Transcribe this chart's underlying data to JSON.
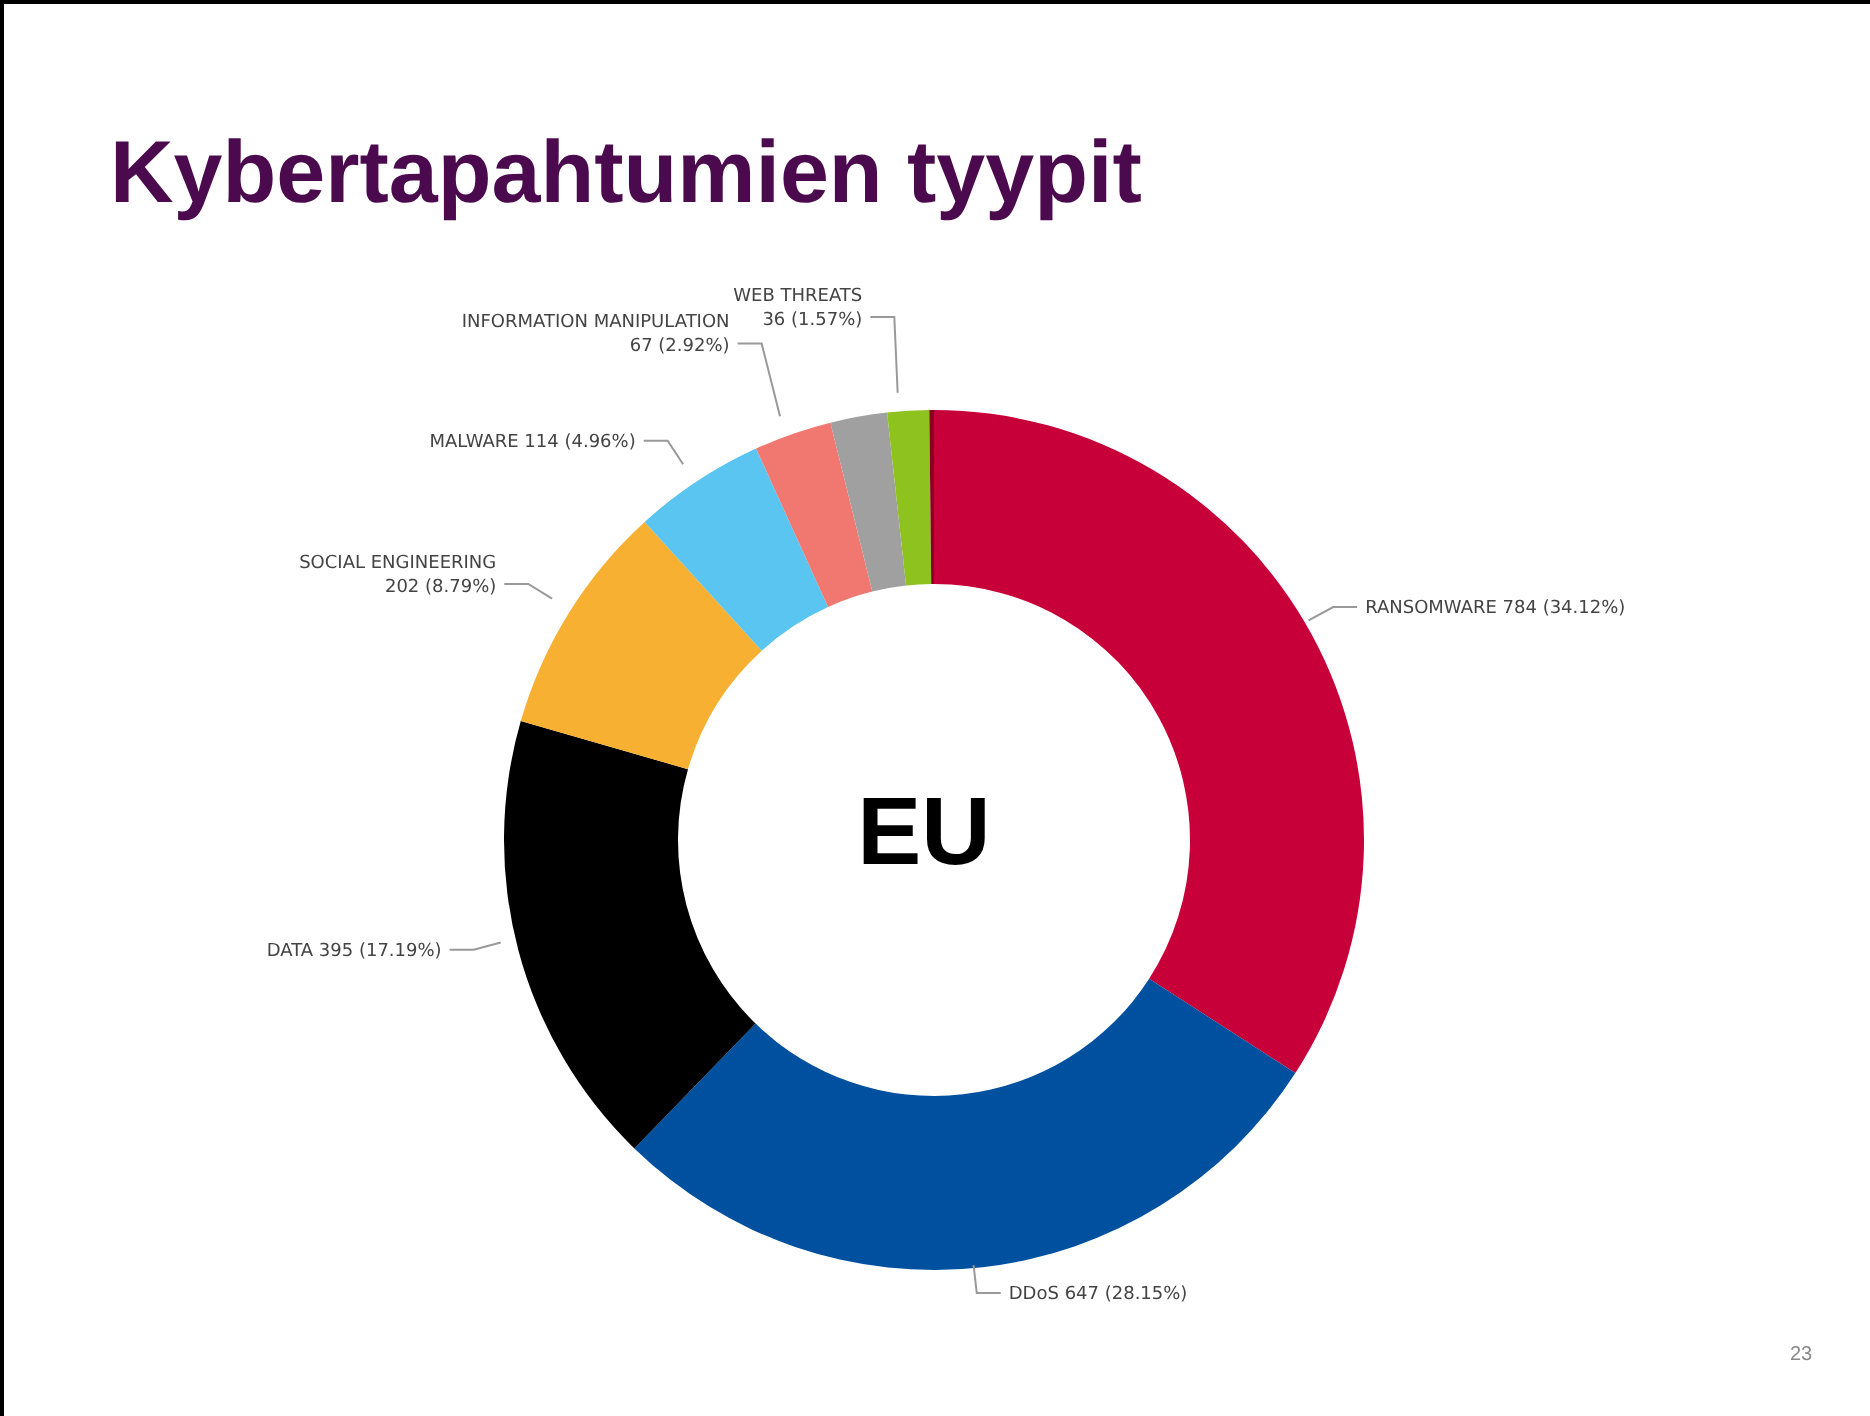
{
  "chart_data": {
    "type": "donut",
    "title": "Kybertapahtumien tyypit",
    "categories": [
      "RANSOMWARE",
      "DDoS",
      "DATA",
      "SOCIAL ENGINEERING",
      "MALWARE",
      "INFORMATION MANIPULATION",
      null,
      "WEB THREATS",
      null
    ],
    "values": [
      784,
      647,
      395,
      202,
      114,
      67,
      49,
      36,
      4
    ],
    "value_labels": [
      "784 (34.12%)",
      "647 (28.15%)",
      "395 (17.19%)",
      "202 (8.79%)",
      "114 (4.96%)",
      "67 (2.92%)",
      null,
      "36 (1.57%)",
      null
    ],
    "colors": [
      "#c8003a",
      "#0050a0",
      "#000000",
      "#f7b031",
      "#5bc5f2",
      "#f07870",
      "#a0a0a0",
      "#8dc21f",
      "#8b0020"
    ],
    "annotations": [
      "EU",
      "23"
    ]
  }
}
